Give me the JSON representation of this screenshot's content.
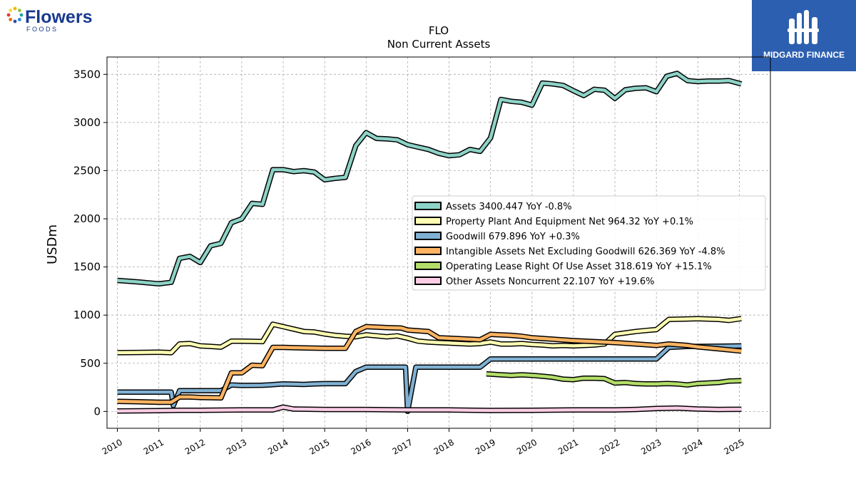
{
  "brand": {
    "left_logo_text": "Flowers",
    "left_logo_sub": "FOODS",
    "right_logo_text": "MIDGARD FINANCE",
    "right_bg": "#2d5fb0"
  },
  "chart_data": {
    "type": "line",
    "title": "FLO",
    "subtitle": "Non Current  Assets",
    "ylabel": "USDm",
    "xlabel": "",
    "xlim": [
      2009.75,
      2025.75
    ],
    "ylim": [
      -175,
      3680
    ],
    "yticks": [
      0,
      500,
      1000,
      1500,
      2000,
      2500,
      3000,
      3500
    ],
    "xticks": [
      "2010",
      "2011",
      "2012",
      "2013",
      "2014",
      "2015",
      "2016",
      "2017",
      "2018",
      "2019",
      "2020",
      "2021",
      "2022",
      "2023",
      "2024",
      "2025"
    ],
    "grid": true,
    "legend_position": "center-right",
    "series": [
      {
        "name": "Assets",
        "legend": "Assets  3400.447 YoY -0.8%",
        "color": "#8dd3c7",
        "points": [
          [
            2010,
            1360
          ],
          [
            2010.5,
            1345
          ],
          [
            2011,
            1325
          ],
          [
            2011.3,
            1340
          ],
          [
            2011.5,
            1590
          ],
          [
            2011.75,
            1610
          ],
          [
            2012,
            1545
          ],
          [
            2012.25,
            1720
          ],
          [
            2012.5,
            1745
          ],
          [
            2012.75,
            1960
          ],
          [
            2013,
            2000
          ],
          [
            2013.25,
            2160
          ],
          [
            2013.5,
            2150
          ],
          [
            2013.75,
            2510
          ],
          [
            2014,
            2510
          ],
          [
            2014.25,
            2490
          ],
          [
            2014.5,
            2500
          ],
          [
            2014.75,
            2485
          ],
          [
            2015,
            2405
          ],
          [
            2015.25,
            2420
          ],
          [
            2015.5,
            2430
          ],
          [
            2015.75,
            2760
          ],
          [
            2016,
            2895
          ],
          [
            2016.25,
            2835
          ],
          [
            2016.5,
            2830
          ],
          [
            2016.75,
            2820
          ],
          [
            2017,
            2770
          ],
          [
            2017.25,
            2745
          ],
          [
            2017.5,
            2720
          ],
          [
            2017.75,
            2680
          ],
          [
            2018,
            2655
          ],
          [
            2018.25,
            2665
          ],
          [
            2018.5,
            2720
          ],
          [
            2018.75,
            2700
          ],
          [
            2019,
            2840
          ],
          [
            2019.25,
            3240
          ],
          [
            2019.5,
            3220
          ],
          [
            2019.75,
            3210
          ],
          [
            2020,
            3180
          ],
          [
            2020.25,
            3410
          ],
          [
            2020.5,
            3400
          ],
          [
            2020.75,
            3385
          ],
          [
            2021,
            3330
          ],
          [
            2021.25,
            3280
          ],
          [
            2021.5,
            3345
          ],
          [
            2021.75,
            3335
          ],
          [
            2022,
            3250
          ],
          [
            2022.25,
            3340
          ],
          [
            2022.5,
            3355
          ],
          [
            2022.75,
            3360
          ],
          [
            2023,
            3320
          ],
          [
            2023.25,
            3480
          ],
          [
            2023.5,
            3510
          ],
          [
            2023.75,
            3435
          ],
          [
            2024,
            3425
          ],
          [
            2024.25,
            3430
          ],
          [
            2024.5,
            3430
          ],
          [
            2024.75,
            3435
          ],
          [
            2025.05,
            3400
          ]
        ]
      },
      {
        "name": "Property Plant And Equipment Net",
        "legend": "Property Plant And Equipment Net  964.32 YoY +0.1%",
        "color": "#ffffb3",
        "points": [
          [
            2010,
            610
          ],
          [
            2010.5,
            612
          ],
          [
            2011,
            615
          ],
          [
            2011.3,
            610
          ],
          [
            2011.5,
            700
          ],
          [
            2011.75,
            705
          ],
          [
            2012,
            680
          ],
          [
            2012.25,
            675
          ],
          [
            2012.5,
            668
          ],
          [
            2012.75,
            730
          ],
          [
            2013,
            730
          ],
          [
            2013.25,
            728
          ],
          [
            2013.5,
            725
          ],
          [
            2013.75,
            905
          ],
          [
            2014,
            880
          ],
          [
            2014.25,
            855
          ],
          [
            2014.5,
            830
          ],
          [
            2014.75,
            825
          ],
          [
            2015,
            805
          ],
          [
            2015.25,
            790
          ],
          [
            2015.5,
            780
          ],
          [
            2015.75,
            775
          ],
          [
            2016,
            795
          ],
          [
            2016.25,
            785
          ],
          [
            2016.5,
            775
          ],
          [
            2016.75,
            785
          ],
          [
            2017,
            760
          ],
          [
            2017.25,
            730
          ],
          [
            2017.5,
            720
          ],
          [
            2017.75,
            715
          ],
          [
            2018,
            710
          ],
          [
            2018.25,
            705
          ],
          [
            2018.5,
            700
          ],
          [
            2018.75,
            705
          ],
          [
            2019,
            720
          ],
          [
            2019.25,
            700
          ],
          [
            2019.5,
            700
          ],
          [
            2019.75,
            705
          ],
          [
            2020,
            695
          ],
          [
            2020.25,
            690
          ],
          [
            2020.5,
            680
          ],
          [
            2020.75,
            685
          ],
          [
            2021,
            680
          ],
          [
            2021.25,
            685
          ],
          [
            2021.5,
            690
          ],
          [
            2021.75,
            700
          ],
          [
            2022,
            800
          ],
          [
            2022.25,
            815
          ],
          [
            2022.5,
            830
          ],
          [
            2022.75,
            840
          ],
          [
            2023,
            850
          ],
          [
            2023.3,
            955
          ],
          [
            2023.75,
            960
          ],
          [
            2024,
            962
          ],
          [
            2024.5,
            955
          ],
          [
            2024.75,
            945
          ],
          [
            2025.05,
            964
          ]
        ]
      },
      {
        "name": "Goodwill",
        "legend": "Goodwill  679.896 YoY +0.3%",
        "color": "#80b1d3",
        "points": [
          [
            2010,
            200
          ],
          [
            2010.5,
            200
          ],
          [
            2011,
            200
          ],
          [
            2011.3,
            200
          ],
          [
            2011.35,
            60
          ],
          [
            2011.5,
            215
          ],
          [
            2011.75,
            215
          ],
          [
            2012,
            215
          ],
          [
            2012.5,
            215
          ],
          [
            2012.75,
            275
          ],
          [
            2013,
            270
          ],
          [
            2013.5,
            272
          ],
          [
            2013.75,
            278
          ],
          [
            2014,
            285
          ],
          [
            2014.5,
            280
          ],
          [
            2014.75,
            285
          ],
          [
            2015,
            288
          ],
          [
            2015.5,
            288
          ],
          [
            2015.75,
            415
          ],
          [
            2016,
            460
          ],
          [
            2016.5,
            460
          ],
          [
            2016.85,
            460
          ],
          [
            2016.95,
            460
          ],
          [
            2017,
            0
          ],
          [
            2017.2,
            460
          ],
          [
            2017.5,
            460
          ],
          [
            2018,
            460
          ],
          [
            2018.75,
            460
          ],
          [
            2019,
            545
          ],
          [
            2019.5,
            545
          ],
          [
            2020,
            545
          ],
          [
            2020.5,
            545
          ],
          [
            2021,
            545
          ],
          [
            2021.5,
            545
          ],
          [
            2022,
            545
          ],
          [
            2022.5,
            545
          ],
          [
            2023,
            545
          ],
          [
            2023.3,
            665
          ],
          [
            2023.75,
            675
          ],
          [
            2024,
            675
          ],
          [
            2024.5,
            677
          ],
          [
            2025.05,
            680
          ]
        ]
      },
      {
        "name": "Intangible Assets Net Excluding Goodwill",
        "legend": "Intangible Assets Net Excluding Goodwill  626.369 YoY -4.8%",
        "color": "#fdb462",
        "points": [
          [
            2010,
            105
          ],
          [
            2010.5,
            100
          ],
          [
            2011,
            95
          ],
          [
            2011.3,
            95
          ],
          [
            2011.5,
            150
          ],
          [
            2011.75,
            150
          ],
          [
            2012,
            145
          ],
          [
            2012.5,
            140
          ],
          [
            2012.75,
            400
          ],
          [
            2013,
            400
          ],
          [
            2013.25,
            480
          ],
          [
            2013.5,
            475
          ],
          [
            2013.75,
            665
          ],
          [
            2014,
            665
          ],
          [
            2014.5,
            660
          ],
          [
            2015,
            655
          ],
          [
            2015.5,
            655
          ],
          [
            2015.75,
            830
          ],
          [
            2016,
            880
          ],
          [
            2016.5,
            870
          ],
          [
            2016.85,
            865
          ],
          [
            2017,
            845
          ],
          [
            2017.5,
            830
          ],
          [
            2017.75,
            765
          ],
          [
            2018,
            760
          ],
          [
            2018.5,
            750
          ],
          [
            2018.75,
            745
          ],
          [
            2019,
            800
          ],
          [
            2019.5,
            790
          ],
          [
            2019.75,
            780
          ],
          [
            2020,
            765
          ],
          [
            2020.5,
            750
          ],
          [
            2021,
            735
          ],
          [
            2021.5,
            725
          ],
          [
            2022,
            715
          ],
          [
            2022.5,
            700
          ],
          [
            2023,
            685
          ],
          [
            2023.3,
            700
          ],
          [
            2023.75,
            685
          ],
          [
            2024,
            670
          ],
          [
            2024.5,
            650
          ],
          [
            2025.05,
            626
          ]
        ]
      },
      {
        "name": "Operating Lease Right Of Use Asset",
        "legend": "Operating Lease Right Of Use Asset  318.619 YoY +15.1%",
        "color": "#b3de69",
        "points": [
          [
            2018.9,
            390
          ],
          [
            2019.25,
            380
          ],
          [
            2019.5,
            375
          ],
          [
            2019.75,
            380
          ],
          [
            2020,
            375
          ],
          [
            2020.25,
            365
          ],
          [
            2020.5,
            355
          ],
          [
            2020.75,
            335
          ],
          [
            2021,
            330
          ],
          [
            2021.25,
            345
          ],
          [
            2021.5,
            345
          ],
          [
            2021.75,
            340
          ],
          [
            2022,
            295
          ],
          [
            2022.25,
            300
          ],
          [
            2022.5,
            290
          ],
          [
            2022.75,
            285
          ],
          [
            2023,
            285
          ],
          [
            2023.25,
            290
          ],
          [
            2023.5,
            285
          ],
          [
            2023.75,
            275
          ],
          [
            2024,
            290
          ],
          [
            2024.25,
            295
          ],
          [
            2024.5,
            300
          ],
          [
            2024.75,
            315
          ],
          [
            2025.05,
            319
          ]
        ]
      },
      {
        "name": "Other Assets Noncurrent",
        "legend": "Other Assets Noncurrent  22.107 YoY +19.6%",
        "color": "#fccde5",
        "points": [
          [
            2010,
            5
          ],
          [
            2011,
            8
          ],
          [
            2011.5,
            12
          ],
          [
            2012,
            12
          ],
          [
            2013,
            15
          ],
          [
            2013.75,
            15
          ],
          [
            2014,
            45
          ],
          [
            2014.25,
            25
          ],
          [
            2015,
            20
          ],
          [
            2016,
            20
          ],
          [
            2017,
            15
          ],
          [
            2018,
            15
          ],
          [
            2019,
            10
          ],
          [
            2020,
            12
          ],
          [
            2021,
            15
          ],
          [
            2022,
            15
          ],
          [
            2022.5,
            20
          ],
          [
            2023,
            30
          ],
          [
            2023.5,
            35
          ],
          [
            2024,
            25
          ],
          [
            2024.5,
            20
          ],
          [
            2025.05,
            22
          ]
        ]
      }
    ]
  }
}
